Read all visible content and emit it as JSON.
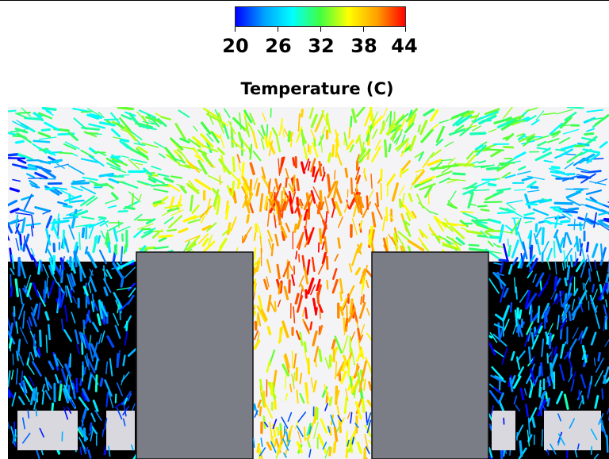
{
  "legend": {
    "title": "Temperature (C)",
    "ticks": [
      "20",
      "26",
      "32",
      "38",
      "44"
    ],
    "min": 20,
    "max": 44,
    "colors": [
      "#0000ff",
      "#00a0ff",
      "#00ffff",
      "#40ff40",
      "#ffff00",
      "#ffa000",
      "#ff0000"
    ]
  },
  "scene": {
    "background_color": "#000000",
    "block_color": "#7a7c86",
    "vent_color": "#d8d8de"
  }
}
